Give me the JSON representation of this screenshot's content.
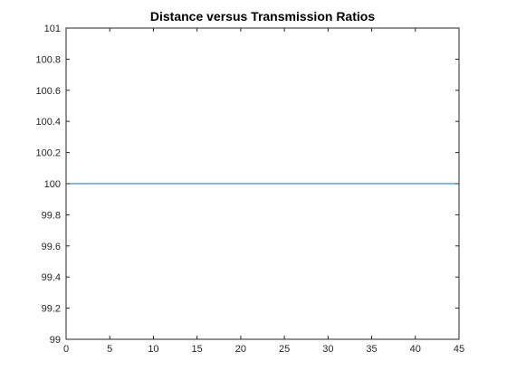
{
  "chart_data": {
    "type": "line",
    "title": "Distance versus Transmission Ratios",
    "xlabel": "",
    "ylabel": "",
    "xlim": [
      0,
      45
    ],
    "ylim": [
      99,
      101
    ],
    "x_ticks": [
      0,
      5,
      10,
      15,
      20,
      25,
      30,
      35,
      40,
      45
    ],
    "y_ticks": [
      99,
      99.2,
      99.4,
      99.6,
      99.8,
      100,
      100.2,
      100.4,
      100.6,
      100.8,
      101
    ],
    "grid": false,
    "series": [
      {
        "x": [
          0,
          45
        ],
        "y": [
          100,
          100
        ]
      }
    ],
    "colors": {
      "line": "#0072bd",
      "axis": "#262626",
      "background": "#ffffff"
    }
  }
}
